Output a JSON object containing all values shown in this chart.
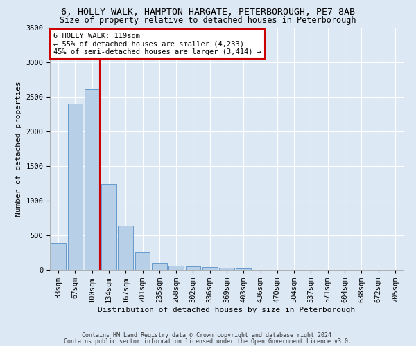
{
  "title_line1": "6, HOLLY WALK, HAMPTON HARGATE, PETERBOROUGH, PE7 8AB",
  "title_line2": "Size of property relative to detached houses in Peterborough",
  "xlabel": "Distribution of detached houses by size in Peterborough",
  "ylabel": "Number of detached properties",
  "footnote1": "Contains HM Land Registry data © Crown copyright and database right 2024.",
  "footnote2": "Contains public sector information licensed under the Open Government Licence v3.0.",
  "categories": [
    "33sqm",
    "67sqm",
    "100sqm",
    "134sqm",
    "167sqm",
    "201sqm",
    "235sqm",
    "268sqm",
    "302sqm",
    "336sqm",
    "369sqm",
    "403sqm",
    "436sqm",
    "470sqm",
    "504sqm",
    "537sqm",
    "571sqm",
    "604sqm",
    "638sqm",
    "672sqm",
    "705sqm"
  ],
  "values": [
    390,
    2400,
    2610,
    1240,
    640,
    260,
    100,
    60,
    55,
    45,
    30,
    25,
    0,
    0,
    0,
    0,
    0,
    0,
    0,
    0,
    0
  ],
  "bar_color": "#b8cfe8",
  "bar_edge_color": "#6699cc",
  "vline_color": "#cc0000",
  "annotation_text": "6 HOLLY WALK: 119sqm\n← 55% of detached houses are smaller (4,233)\n45% of semi-detached houses are larger (3,414) →",
  "annotation_box_color": "#ffffff",
  "annotation_box_edge": "#cc0000",
  "ylim": [
    0,
    3500
  ],
  "yticks": [
    0,
    500,
    1000,
    1500,
    2000,
    2500,
    3000,
    3500
  ],
  "background_color": "#dde8f5",
  "grid_color": "#ffffff",
  "title_fontsize": 9.5,
  "subtitle_fontsize": 8.5,
  "ylabel_fontsize": 8,
  "xlabel_fontsize": 8,
  "tick_fontsize": 7.5,
  "annot_fontsize": 7.5,
  "footnote_fontsize": 6
}
